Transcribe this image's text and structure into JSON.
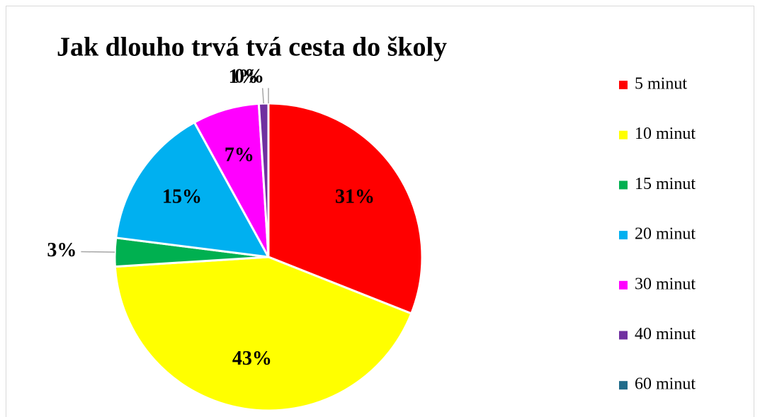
{
  "chart_data": {
    "type": "pie",
    "title": "Jak dlouho trvá tvá cesta do školy",
    "categories": [
      "5 minut",
      "10 minut",
      "15 minut",
      "20 minut",
      "30 minut",
      "40 minut",
      "60 minut"
    ],
    "values": [
      31,
      43,
      3,
      15,
      7,
      1,
      0
    ],
    "value_labels": [
      "31%",
      "43%",
      "3%",
      "15%",
      "7%",
      "1%",
      "0%"
    ],
    "colors": [
      "#ff0000",
      "#ffff00",
      "#00b050",
      "#00b0f0",
      "#ff00ff",
      "#7030a0",
      "#1f6b8a"
    ],
    "legend": "right"
  }
}
